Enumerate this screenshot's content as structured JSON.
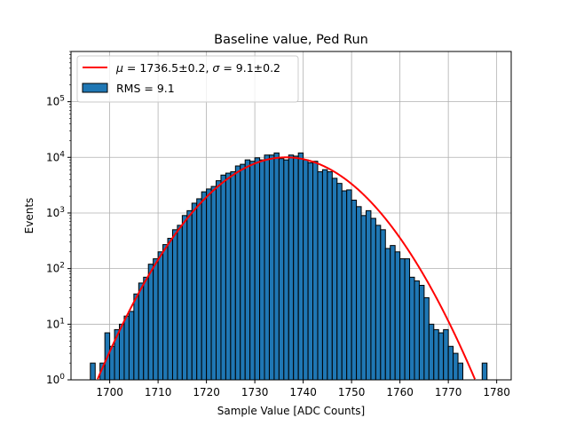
{
  "chart_data": {
    "type": "bar",
    "title": "Baseline value, Ped Run",
    "xlabel": "Sample Value [ADC Counts]",
    "ylabel": "Events",
    "xlim": [
      1692,
      1783
    ],
    "ylim": [
      1,
      800000
    ],
    "yscale": "log",
    "grid": true,
    "legend_position": "top-left",
    "x_ticks": [
      1700,
      1710,
      1720,
      1730,
      1740,
      1750,
      1760,
      1770,
      1780
    ],
    "y_ticks": [
      {
        "value": 1,
        "base": "10",
        "exp": "0"
      },
      {
        "value": 10,
        "base": "10",
        "exp": "1"
      },
      {
        "value": 100,
        "base": "10",
        "exp": "2"
      },
      {
        "value": 1000,
        "base": "10",
        "exp": "3"
      },
      {
        "value": 10000,
        "base": "10",
        "exp": "4"
      },
      {
        "value": 100000,
        "base": "10",
        "exp": "5"
      }
    ],
    "histogram": {
      "name": "RMS = 9.1",
      "color": "#1f77b4",
      "edge_color": "#000000",
      "bin_width": 1,
      "bin_starts": [
        1696,
        1697,
        1698,
        1699,
        1700,
        1701,
        1702,
        1703,
        1704,
        1705,
        1706,
        1707,
        1708,
        1709,
        1710,
        1711,
        1712,
        1713,
        1714,
        1715,
        1716,
        1717,
        1718,
        1719,
        1720,
        1721,
        1722,
        1723,
        1724,
        1725,
        1726,
        1727,
        1728,
        1729,
        1730,
        1731,
        1732,
        1733,
        1734,
        1735,
        1736,
        1737,
        1738,
        1739,
        1740,
        1741,
        1742,
        1743,
        1744,
        1745,
        1746,
        1747,
        1748,
        1749,
        1750,
        1751,
        1752,
        1753,
        1754,
        1755,
        1756,
        1757,
        1758,
        1759,
        1760,
        1761,
        1762,
        1763,
        1764,
        1765,
        1766,
        1767,
        1768,
        1769,
        1770,
        1771,
        1772,
        1773,
        1774,
        1775,
        1776,
        1777
      ],
      "counts": [
        2,
        0,
        2,
        7,
        4,
        8,
        10,
        14,
        17,
        35,
        55,
        70,
        120,
        150,
        200,
        270,
        350,
        500,
        600,
        900,
        1100,
        1500,
        1800,
        2400,
        2700,
        3000,
        3800,
        4800,
        5200,
        5500,
        7000,
        7500,
        9000,
        8500,
        9800,
        9000,
        11000,
        11000,
        12000,
        9500,
        9000,
        11000,
        10500,
        12000,
        9000,
        8000,
        8500,
        5500,
        6000,
        5500,
        4200,
        3400,
        2500,
        2600,
        1700,
        1300,
        900,
        1100,
        800,
        600,
        500,
        230,
        260,
        200,
        150,
        150,
        70,
        60,
        50,
        30,
        10,
        8,
        7,
        8,
        4,
        3,
        2,
        1,
        0,
        0,
        0,
        2
      ]
    },
    "fit": {
      "name": "$\\mu = 1736.5\\pm0.2$, $\\sigma = 9.1\\pm0.2$",
      "legend_parts": {
        "mu_symbol": "μ",
        "mu_text": " = 1736.5±0.2, ",
        "sigma_symbol": "σ",
        "sigma_text": " = 9.1±0.2"
      },
      "mu": 1736.5,
      "sigma": 9.1,
      "amplitude": 10000,
      "color": "#ff0000"
    }
  }
}
